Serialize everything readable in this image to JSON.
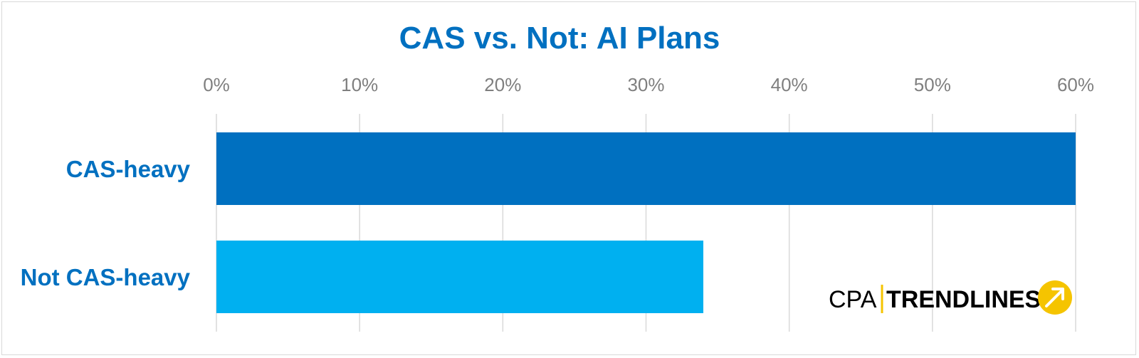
{
  "colors": {
    "title": "#0070c0",
    "category_label": "#0070c0",
    "series": [
      "#0070c0",
      "#00b0f0"
    ],
    "gridline": "#d9d9d9",
    "tick": "#7f7f7f",
    "logo_accent": "#f5c400"
  },
  "chart_data": {
    "type": "bar",
    "orientation": "horizontal",
    "title": "CAS vs. Not: AI Plans",
    "categories": [
      "CAS-heavy",
      "Not CAS-heavy"
    ],
    "values": [
      60,
      34
    ],
    "xlim": [
      0,
      60
    ],
    "x_ticks": [
      "0%",
      "10%",
      "20%",
      "30%",
      "40%",
      "50%",
      "60%"
    ],
    "x_axis_position": "top",
    "grid": true,
    "legend": "none"
  },
  "logo": {
    "left_text": "CPA",
    "right_text": "TRENDLINES",
    "icon": "arrow-circle-icon"
  }
}
